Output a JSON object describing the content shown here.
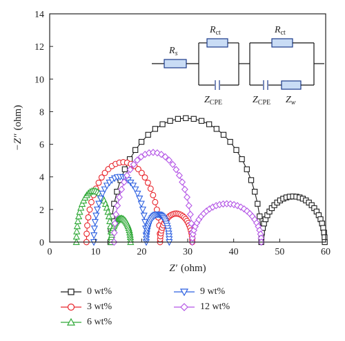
{
  "chart_data": {
    "type": "scatter",
    "xlabel_var": "Z′",
    "xlabel_unit": "(ohm)",
    "ylabel_var": "−Z″",
    "ylabel_unit": "(ohm)",
    "xlim": [
      0,
      60
    ],
    "ylim": [
      0,
      14
    ],
    "xticks": [
      "0",
      "10",
      "20",
      "30",
      "40",
      "50",
      "60"
    ],
    "yticks": [
      "0",
      "2",
      "4",
      "6",
      "8",
      "10",
      "12",
      "14"
    ],
    "grid": false,
    "legend_position": "below",
    "series": [
      {
        "name": "0 wt%",
        "color": "#1a1a1a",
        "marker": "square",
        "arcs": [
          {
            "x_start": 13.2,
            "x_end": 46.0,
            "peak": 7.6
          },
          {
            "x_start": 46.0,
            "x_end": 59.8,
            "peak": 2.8
          }
        ]
      },
      {
        "name": "3 wt%",
        "color": "#e8232a",
        "marker": "circle",
        "arcs": [
          {
            "x_start": 8.0,
            "x_end": 24.0,
            "peak": 4.9
          },
          {
            "x_start": 24.0,
            "x_end": 31.0,
            "peak": 1.75
          }
        ]
      },
      {
        "name": "6 wt%",
        "color": "#2ea836",
        "marker": "triangle-up",
        "arcs": [
          {
            "x_start": 5.8,
            "x_end": 13.4,
            "peak": 3.15
          },
          {
            "x_start": 13.4,
            "x_end": 17.6,
            "peak": 1.45
          }
        ]
      },
      {
        "name": "9 wt%",
        "color": "#2b5fe0",
        "marker": "triangle-down",
        "arcs": [
          {
            "x_start": 9.6,
            "x_end": 21.0,
            "peak": 4.0
          },
          {
            "x_start": 21.0,
            "x_end": 26.0,
            "peak": 1.7
          }
        ]
      },
      {
        "name": "12 wt%",
        "color": "#b455e6",
        "marker": "diamond",
        "arcs": [
          {
            "x_start": 14.0,
            "x_end": 31.0,
            "peak": 5.5
          },
          {
            "x_start": 31.0,
            "x_end": 46.0,
            "peak": 2.35
          }
        ]
      }
    ]
  },
  "circuit": {
    "rs_main": "R",
    "rs_sub": "s",
    "rct_main": "R",
    "rct_sub": "ct",
    "zcpe_main": "Z",
    "zcpe_sub": "CPE",
    "zw_main": "Z",
    "zw_sub": "w"
  }
}
